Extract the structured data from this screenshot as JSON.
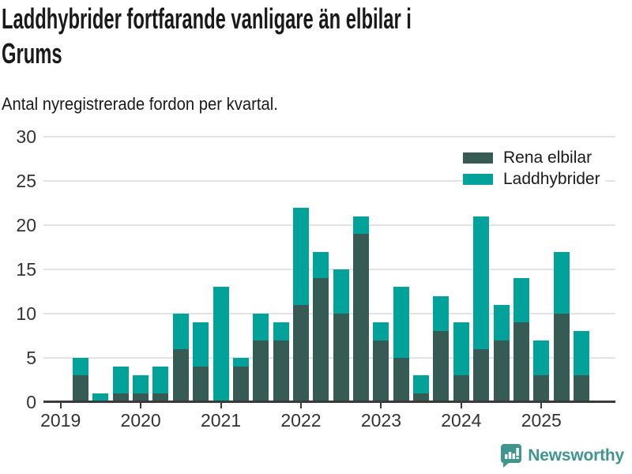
{
  "header": {
    "title": "Laddhybrider fortfarande vanligare än elbilar i Grums",
    "subtitle": "Antal nyregistrerade fordon per kvartal."
  },
  "chart_data": {
    "type": "bar",
    "stacked": true,
    "title": "Laddhybrider fortfarande vanligare än elbilar i Grums",
    "subtitle": "Antal nyregistrerade fordon per kvartal.",
    "x": [
      "2019 Q1",
      "2019 Q2",
      "2019 Q3",
      "2019 Q4",
      "2020 Q1",
      "2020 Q2",
      "2020 Q3",
      "2020 Q4",
      "2021 Q1",
      "2021 Q2",
      "2021 Q3",
      "2021 Q4",
      "2022 Q1",
      "2022 Q2",
      "2022 Q3",
      "2022 Q4",
      "2023 Q1",
      "2023 Q2",
      "2023 Q3",
      "2023 Q4",
      "2024 Q1",
      "2024 Q2",
      "2024 Q3",
      "2024 Q4",
      "2025 Q1",
      "2025 Q2",
      "2025 Q3"
    ],
    "series": [
      {
        "name": "Rena elbilar",
        "color": "#365b55",
        "values": [
          0,
          3,
          0,
          1,
          1,
          1,
          6,
          4,
          0,
          4,
          7,
          7,
          11,
          14,
          10,
          19,
          7,
          5,
          1,
          8,
          3,
          6,
          7,
          9,
          3,
          10,
          3
        ]
      },
      {
        "name": "Laddhybrider",
        "color": "#00a29a",
        "values": [
          0,
          2,
          1,
          3,
          2,
          3,
          4,
          5,
          13,
          1,
          3,
          2,
          11,
          3,
          5,
          2,
          2,
          8,
          2,
          4,
          6,
          15,
          4,
          5,
          4,
          7,
          5
        ]
      }
    ],
    "ylim": [
      0,
      30
    ],
    "yticks": [
      0,
      5,
      10,
      15,
      20,
      25,
      30
    ],
    "xticks": [
      {
        "label": "2019",
        "q": 0
      },
      {
        "label": "2020",
        "q": 4
      },
      {
        "label": "2021",
        "q": 8
      },
      {
        "label": "2022",
        "q": 12
      },
      {
        "label": "2023",
        "q": 16
      },
      {
        "label": "2024",
        "q": 20
      },
      {
        "label": "2025",
        "q": 24
      }
    ],
    "grid": "horizontal",
    "legend_position": "top-right",
    "xlabel": "",
    "ylabel": ""
  },
  "footer": {
    "brand": "Newsworthy",
    "logo_icon": "bar-chart-speech-bubble-icon"
  },
  "colors": {
    "elbilar": "#365b55",
    "laddhybrider": "#00a29a",
    "brand": "#40968f",
    "axis": "#3a3a3a",
    "gridline": "#e3e3e3",
    "tick_text": "#333333",
    "text": "#1a1a1a",
    "background": "#ffffff"
  }
}
